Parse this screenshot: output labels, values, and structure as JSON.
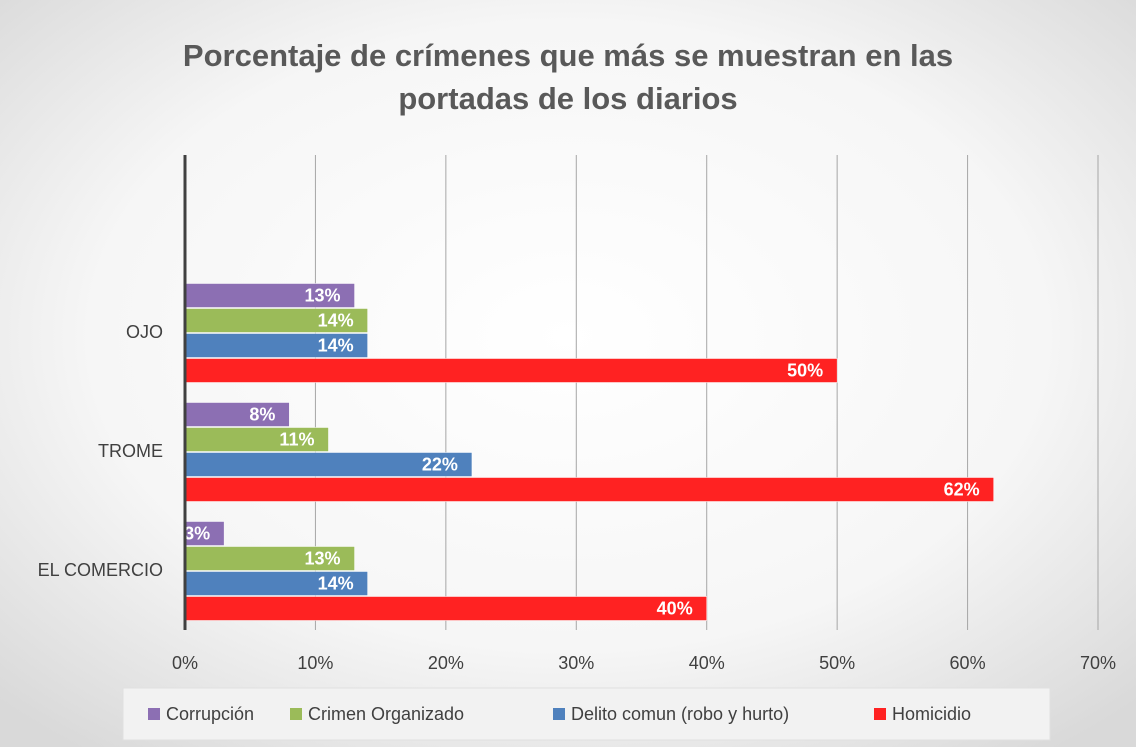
{
  "chart_data": {
    "type": "barh",
    "title": "Porcentaje de crímenes que más se muestran en las",
    "title_line2": "portadas de los diarios",
    "categories": [
      "OJO",
      "TROME",
      "EL COMERCIO"
    ],
    "series": [
      {
        "name": "Corrupción",
        "color": "#8c6fb3",
        "values": [
          13,
          8,
          3
        ],
        "value_labels": [
          "13%",
          "8%",
          "3%"
        ]
      },
      {
        "name": "Crimen Organizado",
        "color": "#9bbb59",
        "values": [
          14,
          11,
          13
        ],
        "value_labels": [
          "14%",
          "11%",
          "13%"
        ]
      },
      {
        "name": "Delito comun (robo y hurto)",
        "color": "#4f81bd",
        "values": [
          14,
          22,
          14
        ],
        "value_labels": [
          "14%",
          "22%",
          "14%"
        ]
      },
      {
        "name": "Homicidio",
        "color": "#ff2222",
        "values": [
          50,
          62,
          40
        ],
        "value_labels": [
          "50%",
          "62%",
          "40%"
        ]
      }
    ],
    "xlim": [
      0,
      70
    ],
    "xticks": [
      {
        "value": 0,
        "label": "0%"
      },
      {
        "value": 10,
        "label": "10%"
      },
      {
        "value": 20,
        "label": "20%"
      },
      {
        "value": 30,
        "label": "30%"
      },
      {
        "value": 40,
        "label": "40%"
      },
      {
        "value": 50,
        "label": "50%"
      },
      {
        "value": 60,
        "label": "60%"
      },
      {
        "value": 70,
        "label": "70%"
      }
    ],
    "grid": true,
    "legend": "bottom"
  }
}
